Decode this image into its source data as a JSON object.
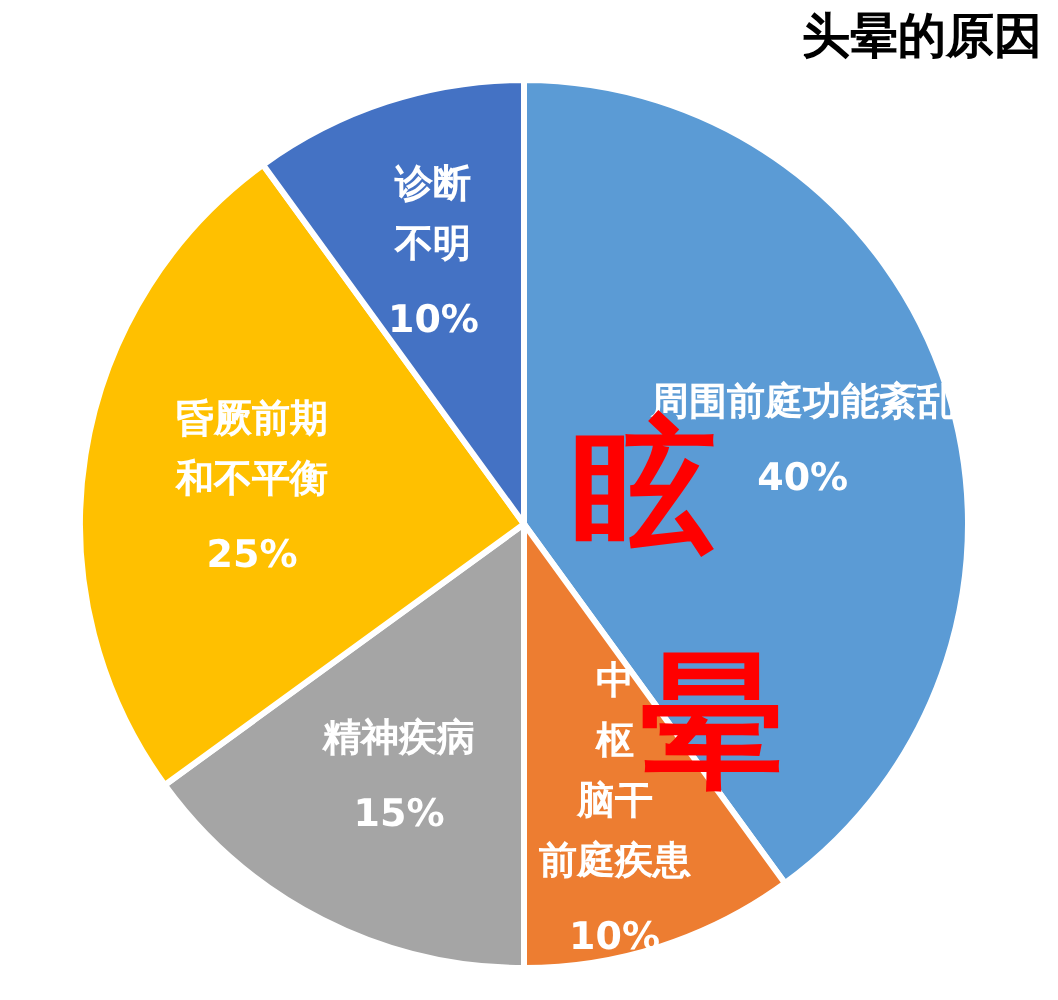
{
  "chart_data": {
    "type": "pie",
    "title": "头晕的原因",
    "categories": [
      "周围前庭功能紊乱",
      "中枢脑干前庭疾患",
      "精神疾病",
      "昏厥前期和不平衡",
      "诊断不明"
    ],
    "values": [
      40,
      10,
      15,
      25,
      10
    ],
    "colors": [
      "#5b9bd5",
      "#ed7d31",
      "#a5a5a5",
      "#ffc000",
      "#4472c4"
    ],
    "value_labels": [
      "40%",
      "10%",
      "15%",
      "25%",
      "10%"
    ],
    "annotations": [
      "眩晕"
    ]
  }
}
